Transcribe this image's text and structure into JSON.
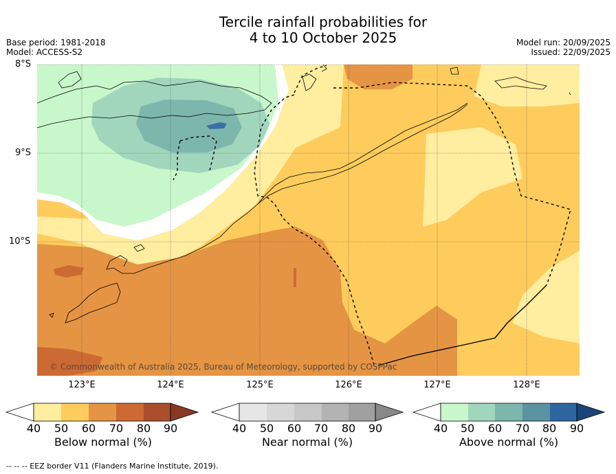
{
  "title_line1": "Tercile rainfall probabilities for",
  "title_line2": "4 to 10 October 2025",
  "meta_left": [
    "Base period: 1981-2018",
    "Model: ACCESS-S2"
  ],
  "meta_right": [
    "Model run: 20/09/2025",
    "Issued: 22/09/2025"
  ],
  "lat_labels": [
    "8°S",
    "9°S",
    "10°S"
  ],
  "lon_labels": [
    "123°E",
    "124°E",
    "125°E",
    "126°E",
    "127°E",
    "128°E"
  ],
  "copyright": "© Commonwealth of Australia 2025, Bureau of Meteorology, supported by COSPPac",
  "colorbars": [
    {
      "label": "Below normal (%)",
      "ticks": [
        "40",
        "50",
        "60",
        "70",
        "80",
        "90"
      ],
      "colors": [
        "#ffeda0",
        "#fecc5c",
        "#e49443",
        "#cd6a33",
        "#ab4e2e",
        "#8a3823"
      ]
    },
    {
      "label": "Near normal (%)",
      "ticks": [
        "40",
        "50",
        "60",
        "70",
        "80",
        "90"
      ],
      "colors": [
        "#e6e6e6",
        "#d7d7d7",
        "#c7c7c7",
        "#b3b3b3",
        "#a0a0a0",
        "#888888"
      ]
    },
    {
      "label": "Above normal (%)",
      "ticks": [
        "40",
        "50",
        "60",
        "70",
        "80",
        "90"
      ],
      "colors": [
        "#c9f7cc",
        "#a1d6bd",
        "#7db6ad",
        "#5c93a0",
        "#2d65a0",
        "#1a4478"
      ]
    }
  ],
  "footer": "--  --  -- EEZ border V11 (Flanders Marine Institute, 2019)."
}
